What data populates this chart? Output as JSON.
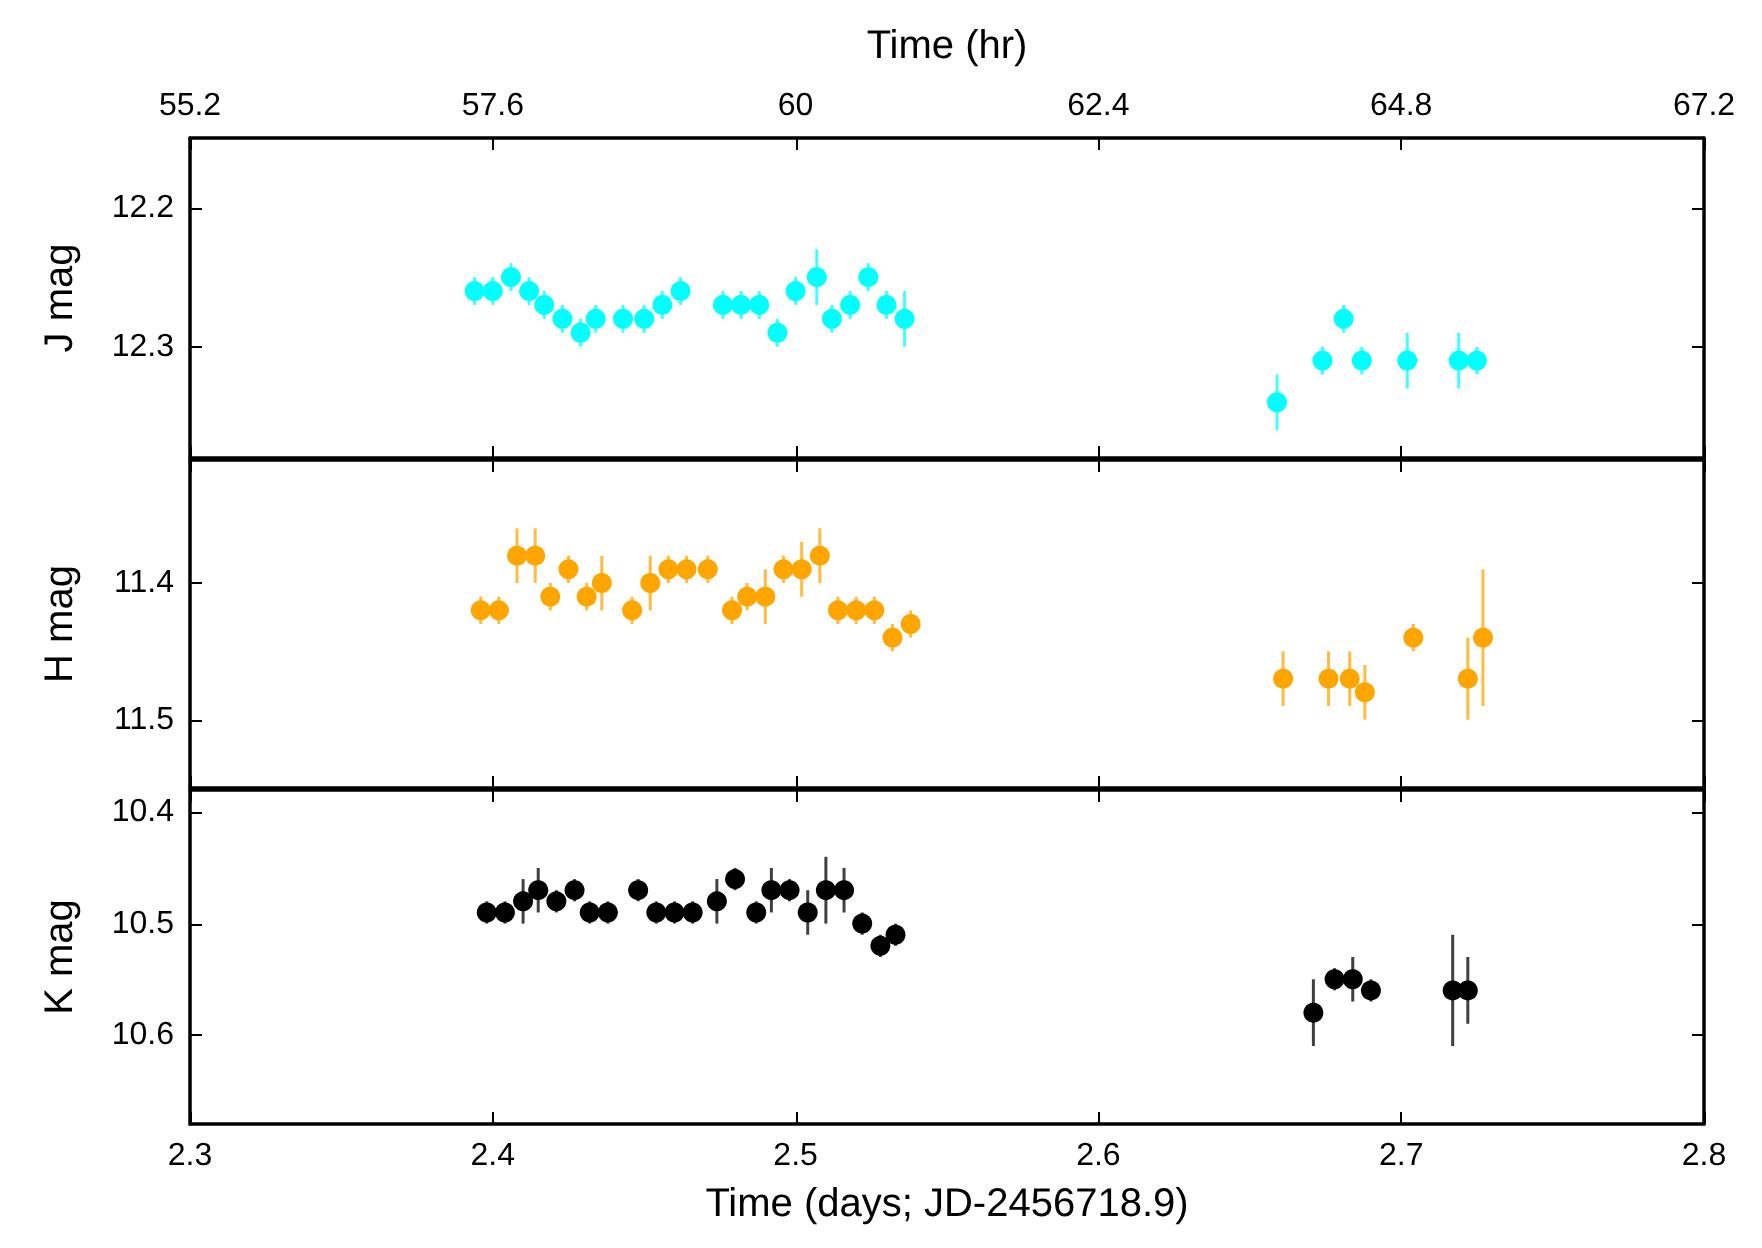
{
  "chart_data": [
    {
      "type": "scatter",
      "ylabel": "J mag",
      "x2label": "Time (hr)",
      "x2lim": [
        55.2,
        67.2
      ],
      "x2ticks": [
        55.2,
        57.6,
        60,
        62.4,
        64.8,
        67.2
      ],
      "xlim": [
        2.3,
        2.8
      ],
      "xticks": [
        2.3,
        2.4,
        2.5,
        2.6,
        2.7,
        2.8
      ],
      "ylim": [
        12.38,
        12.15
      ],
      "yticks": [
        12.2,
        12.3
      ],
      "tick_labels": "y",
      "grid": false,
      "marker": "circle",
      "series": [
        {
          "color": "#00ffff",
          "x": [
            2.394,
            2.4,
            2.406,
            2.412,
            2.417,
            2.423,
            2.429,
            2.434,
            2.443,
            2.45,
            2.456,
            2.462,
            2.476,
            2.482,
            2.488,
            2.494,
            2.5,
            2.507,
            2.512,
            2.518,
            2.524,
            2.53,
            2.536,
            2.659,
            2.674,
            2.681,
            2.687,
            2.702,
            2.719,
            2.725
          ],
          "values": [
            12.26,
            12.26,
            12.25,
            12.26,
            12.27,
            12.28,
            12.29,
            12.28,
            12.28,
            12.28,
            12.27,
            12.26,
            12.27,
            12.27,
            12.27,
            12.29,
            12.26,
            12.25,
            12.28,
            12.27,
            12.25,
            12.27,
            12.28,
            12.34,
            12.31,
            12.28,
            12.31,
            12.31,
            12.31,
            12.31
          ],
          "errors": [
            0.01,
            0.01,
            0.01,
            0.01,
            0.01,
            0.01,
            0.01,
            0.01,
            0.01,
            0.01,
            0.01,
            0.01,
            0.01,
            0.01,
            0.01,
            0.01,
            0.01,
            0.02,
            0.01,
            0.01,
            0.01,
            0.01,
            0.02,
            0.02,
            0.01,
            0.01,
            0.01,
            0.02,
            0.02,
            0.01
          ]
        }
      ]
    },
    {
      "type": "scatter",
      "ylabel": "H mag",
      "xlim": [
        2.3,
        2.8
      ],
      "xticks": [
        2.3,
        2.4,
        2.5,
        2.6,
        2.7,
        2.8
      ],
      "ylim": [
        11.55,
        11.31
      ],
      "yticks": [
        11.4,
        11.5
      ],
      "tick_labels": "y",
      "grid": false,
      "marker": "circle",
      "series": [
        {
          "color": "#ffa500",
          "x": [
            2.396,
            2.402,
            2.408,
            2.414,
            2.419,
            2.425,
            2.431,
            2.436,
            2.446,
            2.452,
            2.458,
            2.464,
            2.471,
            2.479,
            2.484,
            2.49,
            2.496,
            2.502,
            2.508,
            2.514,
            2.52,
            2.526,
            2.532,
            2.538,
            2.661,
            2.676,
            2.683,
            2.688,
            2.704,
            2.722,
            2.727
          ],
          "values": [
            11.42,
            11.42,
            11.38,
            11.38,
            11.41,
            11.39,
            11.41,
            11.4,
            11.42,
            11.4,
            11.39,
            11.39,
            11.39,
            11.42,
            11.41,
            11.41,
            11.39,
            11.39,
            11.38,
            11.42,
            11.42,
            11.42,
            11.44,
            11.43,
            11.47,
            11.47,
            11.47,
            11.48,
            11.44,
            11.47,
            11.44
          ],
          "errors": [
            0.01,
            0.01,
            0.02,
            0.02,
            0.01,
            0.01,
            0.01,
            0.02,
            0.01,
            0.02,
            0.01,
            0.01,
            0.01,
            0.01,
            0.01,
            0.02,
            0.01,
            0.02,
            0.02,
            0.01,
            0.01,
            0.01,
            0.01,
            0.01,
            0.02,
            0.02,
            0.02,
            0.02,
            0.01,
            0.03,
            0.05
          ]
        }
      ]
    },
    {
      "type": "scatter",
      "ylabel": "K mag",
      "xlabel": "Time (days; JD-2456718.9)",
      "xlim": [
        2.3,
        2.8
      ],
      "xticks": [
        2.3,
        2.4,
        2.5,
        2.6,
        2.7,
        2.8
      ],
      "ylim": [
        10.68,
        10.38
      ],
      "yticks": [
        10.4,
        10.5,
        10.6
      ],
      "grid": false,
      "marker": "circle",
      "series": [
        {
          "color": "#000000",
          "x": [
            2.398,
            2.404,
            2.41,
            2.415,
            2.421,
            2.427,
            2.432,
            2.438,
            2.448,
            2.454,
            2.46,
            2.466,
            2.474,
            2.48,
            2.487,
            2.492,
            2.498,
            2.504,
            2.51,
            2.516,
            2.522,
            2.528,
            2.533,
            2.671,
            2.678,
            2.684,
            2.69,
            2.717,
            2.722
          ],
          "values": [
            10.49,
            10.49,
            10.48,
            10.47,
            10.48,
            10.47,
            10.49,
            10.49,
            10.47,
            10.49,
            10.49,
            10.49,
            10.48,
            10.46,
            10.49,
            10.47,
            10.47,
            10.49,
            10.47,
            10.47,
            10.5,
            10.52,
            10.51,
            10.58,
            10.55,
            10.55,
            10.56,
            10.56,
            10.56
          ],
          "errors": [
            0.01,
            0.01,
            0.02,
            0.02,
            0.01,
            0.01,
            0.01,
            0.01,
            0.01,
            0.01,
            0.01,
            0.01,
            0.02,
            0.01,
            0.01,
            0.02,
            0.01,
            0.02,
            0.03,
            0.02,
            0.01,
            0.01,
            0.01,
            0.03,
            0.01,
            0.02,
            0.01,
            0.05,
            0.03
          ]
        }
      ]
    }
  ]
}
